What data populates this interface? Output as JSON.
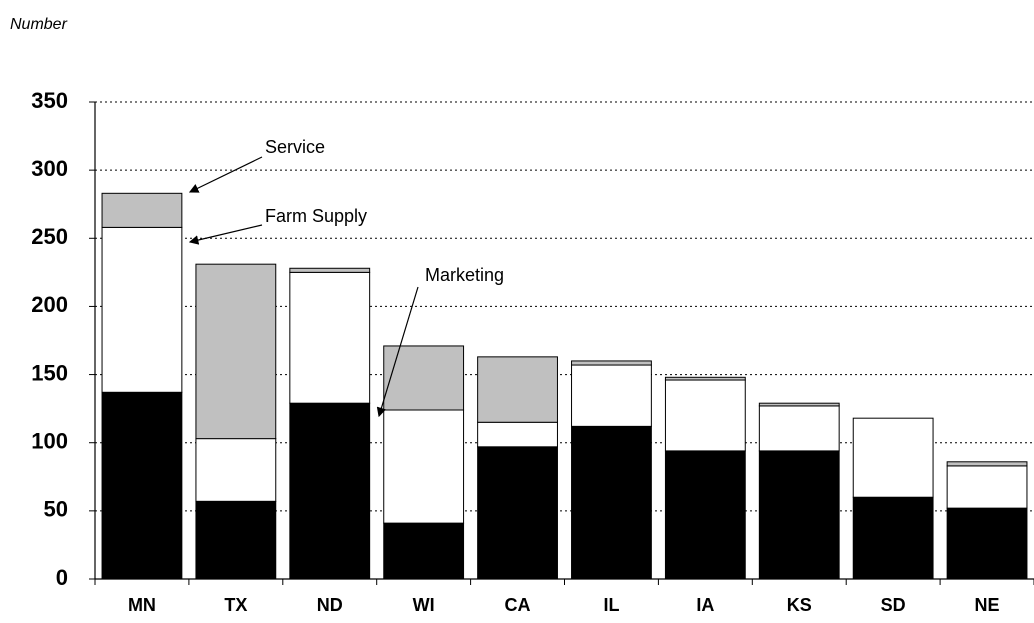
{
  "chart_data": {
    "type": "stacked-bar",
    "y_label": "Number",
    "categories": [
      "MN",
      "TX",
      "ND",
      "WI",
      "CA",
      "IL",
      "IA",
      "KS",
      "SD",
      "NE"
    ],
    "series": [
      {
        "name": "Marketing",
        "color": "#000000",
        "values": [
          137,
          57,
          129,
          41,
          97,
          112,
          94,
          94,
          60,
          52
        ]
      },
      {
        "name": "Farm Supply",
        "color": "#ffffff",
        "values": [
          121,
          46,
          96,
          83,
          18,
          45,
          52,
          33,
          58,
          31
        ]
      },
      {
        "name": "Service",
        "color": "#c0c0c0",
        "values": [
          25,
          128,
          3,
          47,
          48,
          3,
          2,
          2,
          0,
          3
        ]
      }
    ],
    "ylim": [
      0,
      350
    ],
    "yticks": [
      0,
      50,
      100,
      150,
      200,
      250,
      300,
      350
    ],
    "grid": true
  }
}
